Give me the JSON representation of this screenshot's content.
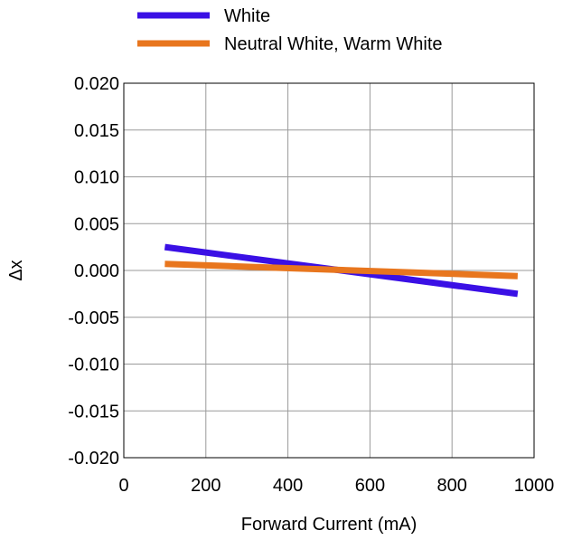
{
  "chart_data": {
    "type": "line",
    "title": "",
    "xlabel": "Forward Current (mA)",
    "ylabel": "Δx",
    "xlim": [
      0,
      1000
    ],
    "ylim": [
      -0.02,
      0.02
    ],
    "xticks": [
      0,
      200,
      400,
      600,
      800,
      1000
    ],
    "xtick_labels": [
      "0",
      "200",
      "400",
      "600",
      "800",
      "1000"
    ],
    "yticks": [
      0.02,
      0.015,
      0.01,
      0.005,
      0.0,
      -0.005,
      -0.01,
      -0.015,
      -0.02
    ],
    "ytick_labels": [
      "0.020",
      "0.015",
      "0.010",
      "0.005",
      "0.000",
      "-0.005",
      "-0.010",
      "-0.015",
      "-0.020"
    ],
    "grid": true,
    "legend_position": "top",
    "series": [
      {
        "name": "White",
        "color": "#3a10e5",
        "x": [
          100,
          960
        ],
        "y": [
          0.0025,
          -0.0025
        ]
      },
      {
        "name": "Neutral White, Warm White",
        "color": "#e8761e",
        "x": [
          100,
          960
        ],
        "y": [
          0.0007,
          -0.0006
        ]
      }
    ]
  }
}
